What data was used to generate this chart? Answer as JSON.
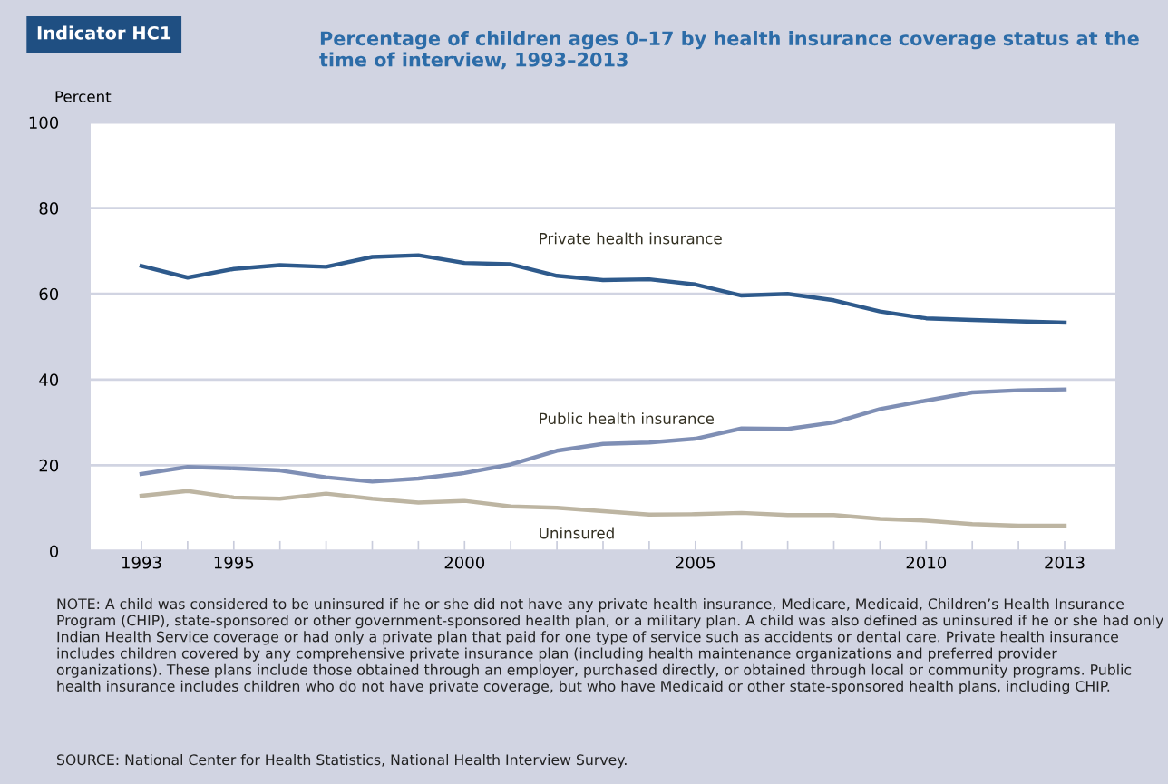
{
  "chart_data": {
    "type": "line",
    "title": "Percentage of children ages 0–17 by health insurance coverage status at the time of interview, 1993–2013",
    "ylabel": "Percent",
    "x": [
      1993,
      1994,
      1995,
      1996,
      1997,
      1998,
      1999,
      2000,
      2001,
      2002,
      2003,
      2004,
      2005,
      2006,
      2007,
      2008,
      2009,
      2010,
      2011,
      2012,
      2013
    ],
    "series": [
      {
        "name": "Private health insurance",
        "color": "#2e5a8c",
        "values": [
          66.5,
          63.8,
          65.8,
          66.7,
          66.3,
          68.6,
          69.0,
          67.2,
          66.9,
          64.2,
          63.2,
          63.4,
          62.2,
          59.6,
          60.0,
          58.5,
          55.9,
          54.3,
          53.9,
          53.6,
          53.3
        ]
      },
      {
        "name": "Public health insurance",
        "color": "#7f8fb5",
        "values": [
          18.0,
          19.6,
          19.3,
          18.8,
          17.2,
          16.2,
          16.9,
          18.2,
          20.2,
          23.4,
          25.0,
          25.3,
          26.2,
          28.6,
          28.5,
          30.0,
          33.1,
          35.1,
          37.0,
          37.5,
          37.7
        ]
      },
      {
        "name": "Uninsured",
        "color": "#bdb5a2",
        "values": [
          12.9,
          14.0,
          12.5,
          12.2,
          13.4,
          12.2,
          11.3,
          11.7,
          10.4,
          10.1,
          9.3,
          8.5,
          8.6,
          8.9,
          8.4,
          8.4,
          7.5,
          7.1,
          6.3,
          5.9,
          5.9
        ]
      }
    ],
    "xlim": [
      1991.9,
      2014.1
    ],
    "xticks": [
      1993,
      {
        "value": 1994,
        "label": null
      },
      1995,
      {
        "value": 1996,
        "label": null
      },
      {
        "value": 1997,
        "label": null
      },
      {
        "value": 1998,
        "label": null
      },
      {
        "value": 1999,
        "label": null
      },
      2000,
      {
        "value": 2001,
        "label": null
      },
      {
        "value": 2002,
        "label": null
      },
      {
        "value": 2003,
        "label": null
      },
      {
        "value": 2004,
        "label": null
      },
      2005,
      {
        "value": 2006,
        "label": null
      },
      {
        "value": 2007,
        "label": null
      },
      {
        "value": 2008,
        "label": null
      },
      {
        "value": 2009,
        "label": null
      },
      2010,
      {
        "value": 2011,
        "label": null
      },
      {
        "value": 2012,
        "label": null
      },
      2013
    ],
    "ylim": [
      0,
      100
    ],
    "yticks": [
      0,
      20,
      40,
      60,
      80,
      100
    ],
    "grid": "y",
    "legend": false,
    "marker": "none",
    "line_style": "solid",
    "annotations": [
      "Indicator HC1",
      "NOTE: A child was considered to be uninsured if he or she did not have any private health insurance, Medicare, Medicaid, Children’s Health Insurance Program (CHIP), state-sponsored or other government-sponsored health plan, or a military plan. A child was also defined as uninsured if he or she had only Indian Health Service coverage or had only a private plan that paid for one type of service such as accidents or dental care. Private health insurance includes children covered by any comprehensive private insurance plan (including health maintenance organizations and preferred provider organizations). These plans include those obtained through an employer, purchased directly, or obtained through local or community programs. Public health insurance includes children who do not have private coverage, but who have Medicaid or other state-sponsored health plans, including CHIP.",
      "SOURCE: National Center for Health Statistics, National Health Interview Survey."
    ]
  }
}
